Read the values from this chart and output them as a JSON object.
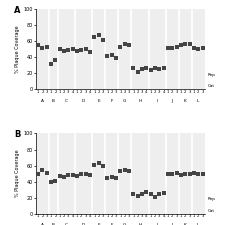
{
  "panel_A": {
    "label": "A",
    "categories": [
      "A",
      "B",
      "C",
      "D",
      "E",
      "F",
      "G",
      "H",
      "I",
      "J",
      "K",
      "L"
    ],
    "values": [
      [
        55,
        52,
        53
      ],
      [
        32,
        36
      ],
      [
        50,
        48,
        49,
        50
      ],
      [
        48,
        49,
        50,
        47
      ],
      [
        65,
        67,
        62
      ],
      [
        41,
        43,
        39
      ],
      [
        53,
        56,
        55
      ],
      [
        27,
        22,
        25,
        27
      ],
      [
        24,
        26,
        25,
        27
      ],
      [
        52,
        52,
        53
      ],
      [
        55,
        57,
        57
      ],
      [
        51,
        50,
        52
      ]
    ],
    "reps": [
      3,
      2,
      4,
      4,
      3,
      3,
      3,
      4,
      4,
      3,
      3,
      3
    ]
  },
  "panel_B": {
    "label": "B",
    "categories": [
      "A",
      "B",
      "C",
      "D",
      "E",
      "F",
      "G",
      "H",
      "I",
      "J",
      "K",
      "L"
    ],
    "values": [
      [
        50,
        54,
        51
      ],
      [
        39,
        41
      ],
      [
        47,
        46,
        48,
        48
      ],
      [
        47,
        49,
        50,
        48
      ],
      [
        61,
        63,
        59
      ],
      [
        44,
        46,
        44
      ],
      [
        53,
        54,
        53
      ],
      [
        25,
        22,
        24,
        27
      ],
      [
        25,
        21,
        24,
        26
      ],
      [
        49,
        50,
        51
      ],
      [
        48,
        49,
        50
      ],
      [
        51,
        49,
        50
      ]
    ],
    "reps": [
      3,
      2,
      4,
      4,
      3,
      3,
      3,
      4,
      4,
      3,
      3,
      3
    ]
  },
  "ylabel": "% Plaque Coverage",
  "xlabel_rep": "Rep",
  "xlabel_cat": "Cat",
  "ylim": [
    0,
    100
  ],
  "yticks": [
    0,
    20,
    40,
    60,
    80,
    100
  ],
  "bg_color": "#eeeeee",
  "marker_color": "#444444",
  "marker": "s",
  "marker_size": 2.2,
  "vline_color": "#ffffff"
}
